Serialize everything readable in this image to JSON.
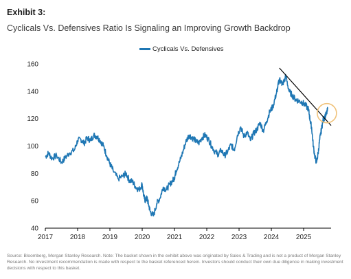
{
  "header": {
    "exhibit": "Exhibit 3:",
    "subtitle": "Cyclicals Vs. Defensives Ratio Is Signaling an Improving Growth Backdrop"
  },
  "footer": {
    "source": "Source: Bloomberg, Morgan Stanley Research. Note: The basket shown in the exhibit above was originated by Sales & Trading and is not a product of Morgan Stanley Research. No investment recommendation is made with respect to the basket referenced herein. Investors should conduct their own due diligence in making investment decisions with respect to this basket."
  },
  "colors": {
    "line": "#1f77b4",
    "trend": "#000000",
    "circle": "#f0c27a",
    "axis": "#000000"
  },
  "chart_data": {
    "type": "line",
    "title": "",
    "xlabel": "",
    "ylabel": "",
    "xlim": [
      2017.0,
      2025.85
    ],
    "ylim": [
      40,
      160
    ],
    "xticks": [
      "2017",
      "2018",
      "2019",
      "2020",
      "2021",
      "2022",
      "2023",
      "2024",
      "2025"
    ],
    "yticks": [
      "40",
      "60",
      "80",
      "100",
      "120",
      "140",
      "160"
    ],
    "legend": "top-center",
    "grid": false,
    "series": [
      {
        "name": "Cyclicals Vs. Defensives",
        "x": [
          2017.0,
          2017.1,
          2017.2,
          2017.35,
          2017.5,
          2017.6,
          2017.75,
          2017.9,
          2018.0,
          2018.1,
          2018.2,
          2018.3,
          2018.4,
          2018.5,
          2018.6,
          2018.7,
          2018.8,
          2018.9,
          2019.0,
          2019.1,
          2019.25,
          2019.4,
          2019.5,
          2019.6,
          2019.7,
          2019.8,
          2019.9,
          2020.0,
          2020.05,
          2020.1,
          2020.15,
          2020.2,
          2020.25,
          2020.35,
          2020.45,
          2020.55,
          2020.65,
          2020.75,
          2020.85,
          2020.95,
          2021.0,
          2021.05,
          2021.15,
          2021.25,
          2021.35,
          2021.45,
          2021.55,
          2021.65,
          2021.75,
          2021.85,
          2021.95,
          2022.05,
          2022.15,
          2022.25,
          2022.35,
          2022.45,
          2022.55,
          2022.65,
          2022.75,
          2022.85,
          2022.95,
          2023.05,
          2023.15,
          2023.25,
          2023.35,
          2023.45,
          2023.55,
          2023.65,
          2023.75,
          2023.85,
          2023.95,
          2024.05,
          2024.15,
          2024.2,
          2024.25,
          2024.3,
          2024.35,
          2024.45,
          2024.55,
          2024.65,
          2024.75,
          2024.85,
          2024.95,
          2025.05,
          2025.15,
          2025.2,
          2025.25,
          2025.3,
          2025.35,
          2025.4,
          2025.45,
          2025.5,
          2025.55,
          2025.6,
          2025.65,
          2025.7,
          2025.75
        ],
        "values": [
          92,
          95,
          91,
          93,
          88,
          91,
          95,
          97,
          104,
          105,
          102,
          106,
          104,
          108,
          107,
          104,
          100,
          93,
          87,
          82,
          76,
          78,
          80,
          75,
          74,
          70,
          68,
          72,
          63,
          60,
          62,
          57,
          52,
          49,
          58,
          62,
          70,
          68,
          72,
          75,
          77,
          82,
          88,
          95,
          103,
          108,
          106,
          104,
          102,
          106,
          108,
          105,
          100,
          96,
          94,
          97,
          93,
          96,
          101,
          97,
          108,
          114,
          107,
          110,
          104,
          109,
          112,
          117,
          111,
          118,
          125,
          129,
          138,
          143,
          149,
          147,
          145,
          151,
          140,
          137,
          134,
          133,
          132,
          130,
          127,
          119,
          113,
          100,
          92,
          88,
          95,
          105,
          112,
          119,
          121,
          123,
          127
        ]
      }
    ],
    "trendline": {
      "x": [
        2024.25,
        2025.85
      ],
      "values": [
        157,
        115
      ]
    },
    "highlight": {
      "x": 2025.72,
      "value": 124
    }
  }
}
